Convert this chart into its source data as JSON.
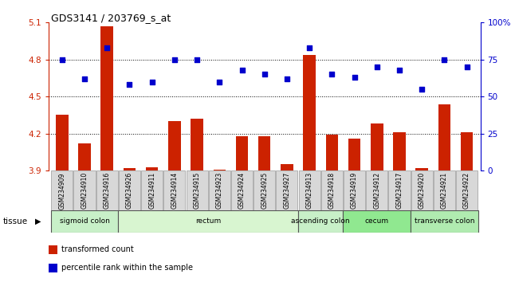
{
  "title": "GDS3141 / 203769_s_at",
  "samples": [
    "GSM234909",
    "GSM234910",
    "GSM234916",
    "GSM234926",
    "GSM234911",
    "GSM234914",
    "GSM234915",
    "GSM234923",
    "GSM234924",
    "GSM234925",
    "GSM234927",
    "GSM234913",
    "GSM234918",
    "GSM234919",
    "GSM234912",
    "GSM234917",
    "GSM234920",
    "GSM234921",
    "GSM234922"
  ],
  "bar_values": [
    4.35,
    4.12,
    5.07,
    3.92,
    3.93,
    4.3,
    4.32,
    3.91,
    4.18,
    4.18,
    3.95,
    4.84,
    4.19,
    4.16,
    4.28,
    4.21,
    3.92,
    4.44,
    4.21
  ],
  "dot_values": [
    75,
    62,
    83,
    58,
    60,
    75,
    75,
    60,
    68,
    65,
    62,
    83,
    65,
    63,
    70,
    68,
    55,
    75,
    70
  ],
  "ylim_left": [
    3.9,
    5.1
  ],
  "ylim_right": [
    0,
    100
  ],
  "yticks_left": [
    3.9,
    4.2,
    4.5,
    4.8,
    5.1
  ],
  "yticks_right": [
    0,
    25,
    50,
    75,
    100
  ],
  "hlines": [
    4.2,
    4.5,
    4.8
  ],
  "bar_color": "#cc2200",
  "dot_color": "#0000cc",
  "tissue_groups": [
    {
      "label": "sigmoid colon",
      "start": 0,
      "end": 3,
      "color": "#c8f0c8"
    },
    {
      "label": "rectum",
      "start": 3,
      "end": 11,
      "color": "#d8f5d0"
    },
    {
      "label": "ascending colon",
      "start": 11,
      "end": 13,
      "color": "#c8f0c8"
    },
    {
      "label": "cecum",
      "start": 13,
      "end": 16,
      "color": "#90e890"
    },
    {
      "label": "transverse colon",
      "start": 16,
      "end": 19,
      "color": "#b0ebb0"
    }
  ],
  "tissue_label": "tissue",
  "legend_items": [
    {
      "label": "transformed count",
      "color": "#cc2200"
    },
    {
      "label": "percentile rank within the sample",
      "color": "#0000cc"
    }
  ],
  "bg_color": "#ffffff",
  "plot_bg": "#ffffff"
}
